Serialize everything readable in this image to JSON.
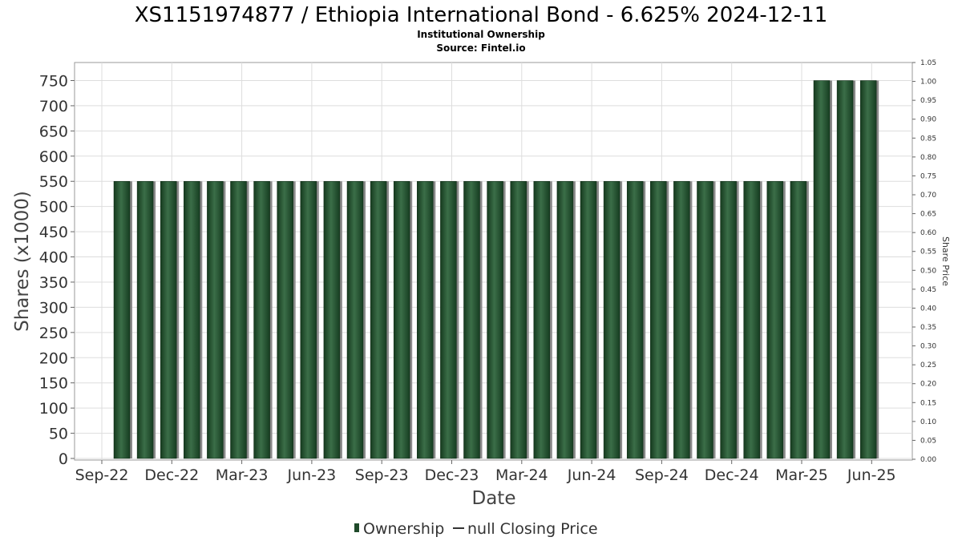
{
  "chart_data": {
    "type": "bar",
    "title": "XS1151974877 / Ethiopia International Bond - 6.625% 2024-12-11",
    "subtitle_lines": [
      "Institutional Ownership",
      "Source: Fintel.io"
    ],
    "xlabel": "Date",
    "ylabel": "Shares (x1000)",
    "y2label": "Share Price",
    "ylim": [
      0,
      785
    ],
    "yticks": [
      0,
      50,
      100,
      150,
      200,
      250,
      300,
      350,
      400,
      450,
      500,
      550,
      600,
      650,
      700,
      750
    ],
    "y2lim": [
      0,
      1.05
    ],
    "y2ticks": [
      "0.00",
      "0.05",
      "0.10",
      "0.15",
      "0.20",
      "0.25",
      "0.30",
      "0.35",
      "0.40",
      "0.45",
      "0.50",
      "0.55",
      "0.60",
      "0.65",
      "0.70",
      "0.75",
      "0.80",
      "0.85",
      "0.90",
      "0.95",
      "1.00",
      "1.05"
    ],
    "xticks": [
      "Sep-22",
      "Dec-22",
      "Mar-23",
      "Jun-23",
      "Sep-23",
      "Dec-23",
      "Mar-24",
      "Jun-24",
      "Sep-24",
      "Dec-24",
      "Mar-25",
      "Jun-25"
    ],
    "grid": true,
    "legend_position": "bottom",
    "colors": {
      "bar": "#1f4a2a",
      "bar_light": "#3a6b45",
      "shadow": "#8a8a8a"
    },
    "series": [
      {
        "name": "Ownership",
        "values": [
          550,
          550,
          550,
          550,
          550,
          550,
          550,
          550,
          550,
          550,
          550,
          550,
          550,
          550,
          550,
          550,
          550,
          550,
          550,
          550,
          550,
          550,
          550,
          550,
          550,
          550,
          550,
          550,
          550,
          550,
          750,
          750,
          750
        ]
      }
    ],
    "legend": [
      {
        "label": "Ownership",
        "marker": "bar"
      },
      {
        "label": "null Closing Price",
        "marker": "line"
      }
    ]
  }
}
